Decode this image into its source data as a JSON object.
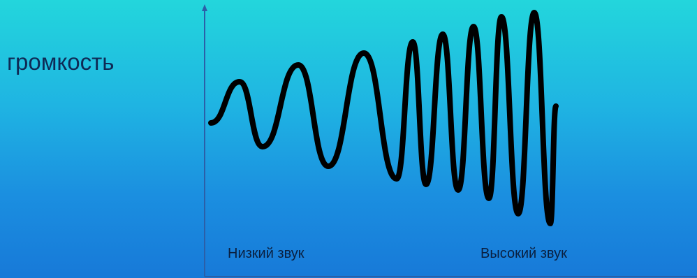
{
  "y_axis_label": "громкость",
  "x_labels": {
    "low": "Низкий звук",
    "high": "Высокий звук"
  },
  "colors": {
    "wave": "#000000",
    "axis": "#2b5fa8",
    "background_top": "#23d6dc",
    "background_bottom": "#1779d8"
  }
}
